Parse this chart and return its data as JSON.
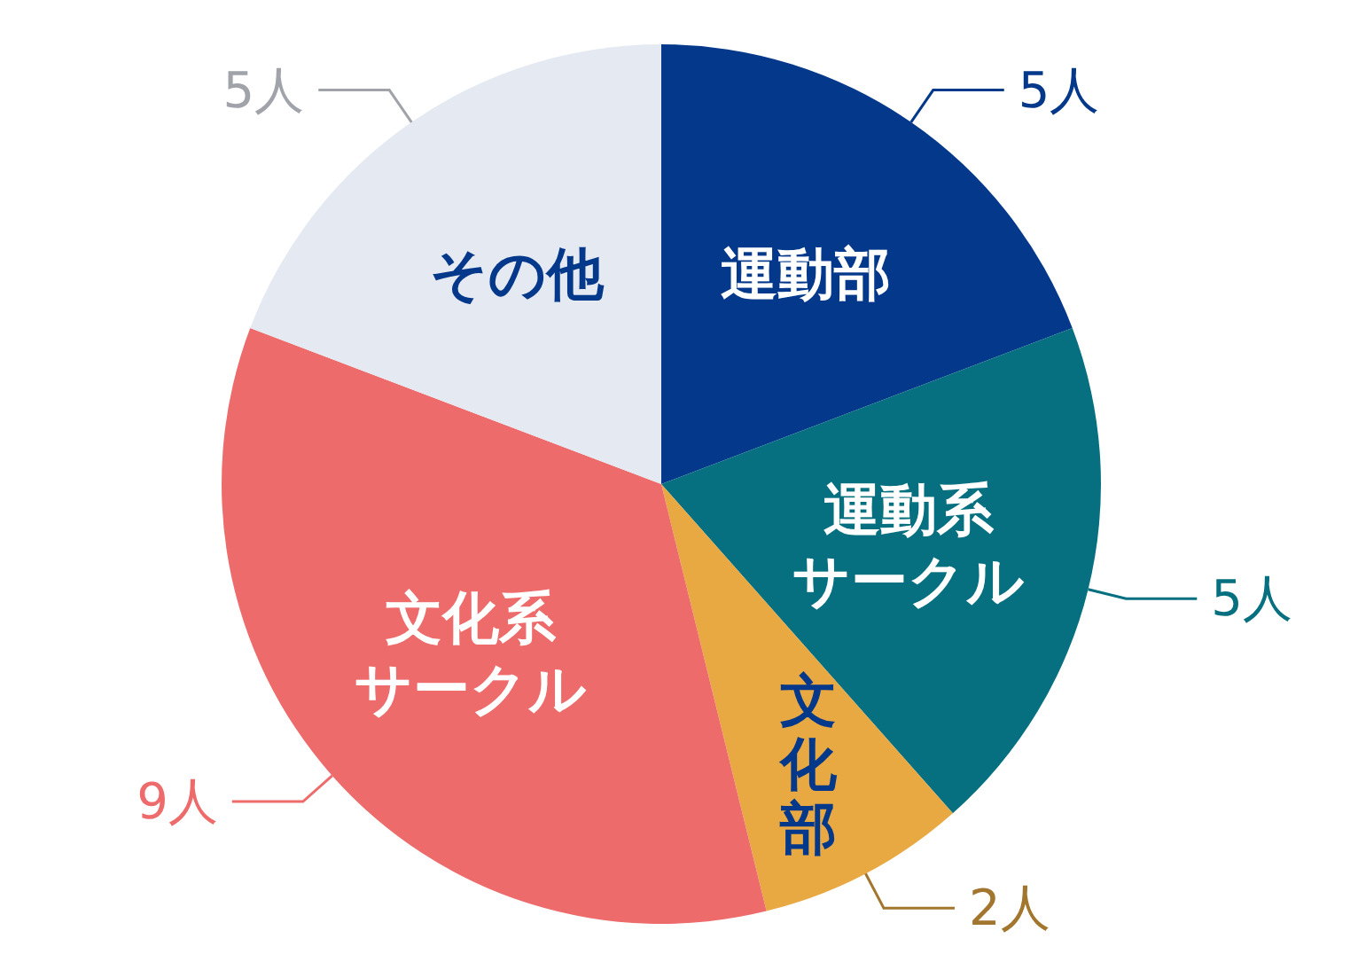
{
  "chart_data": {
    "type": "pie",
    "categories": [
      "運動部",
      "運動系サークル",
      "文化部",
      "文化系サークル",
      "その他"
    ],
    "values": [
      5,
      5,
      2,
      9,
      5
    ],
    "value_labels": [
      "5人",
      "5人",
      "2人",
      "9人",
      "5人"
    ],
    "colors": [
      "#04388a",
      "#077080",
      "#e8a842",
      "#ee6b6b",
      "#e4e9f2"
    ],
    "legend": false
  }
}
